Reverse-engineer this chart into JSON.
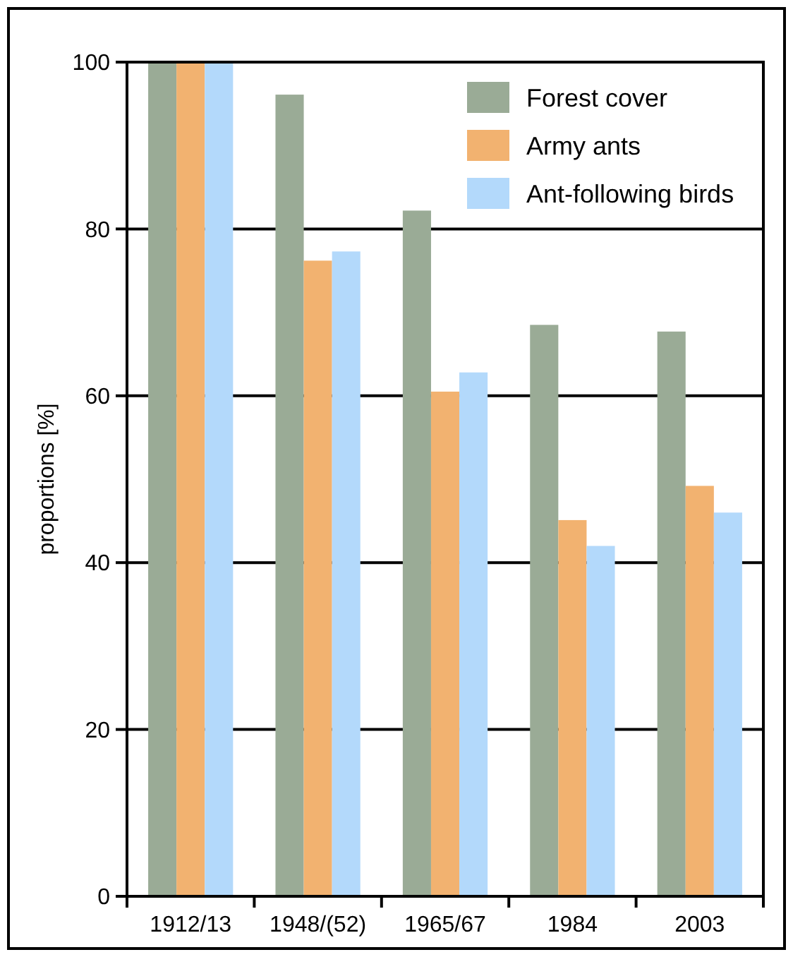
{
  "chart_data": {
    "type": "bar",
    "ylabel": "proportions [%]",
    "categories": [
      "1912/13",
      "1948/(52)",
      "1965/67",
      "1984",
      "2003"
    ],
    "series": [
      {
        "name": "Forest cover",
        "color": "#9aab96",
        "values": [
          100,
          96.1,
          82.2,
          68.5,
          67.7
        ]
      },
      {
        "name": "Army ants",
        "color": "#f2b270",
        "values": [
          100,
          76.2,
          60.5,
          45.1,
          49.2
        ]
      },
      {
        "name": "Ant-following birds",
        "color": "#b3d9fb",
        "values": [
          100,
          77.3,
          62.8,
          42.0,
          46.0
        ]
      }
    ],
    "ylim": [
      0,
      100
    ],
    "yticks": [
      0,
      20,
      40,
      60,
      80,
      100
    ],
    "grid": "y",
    "legend": "top right"
  }
}
